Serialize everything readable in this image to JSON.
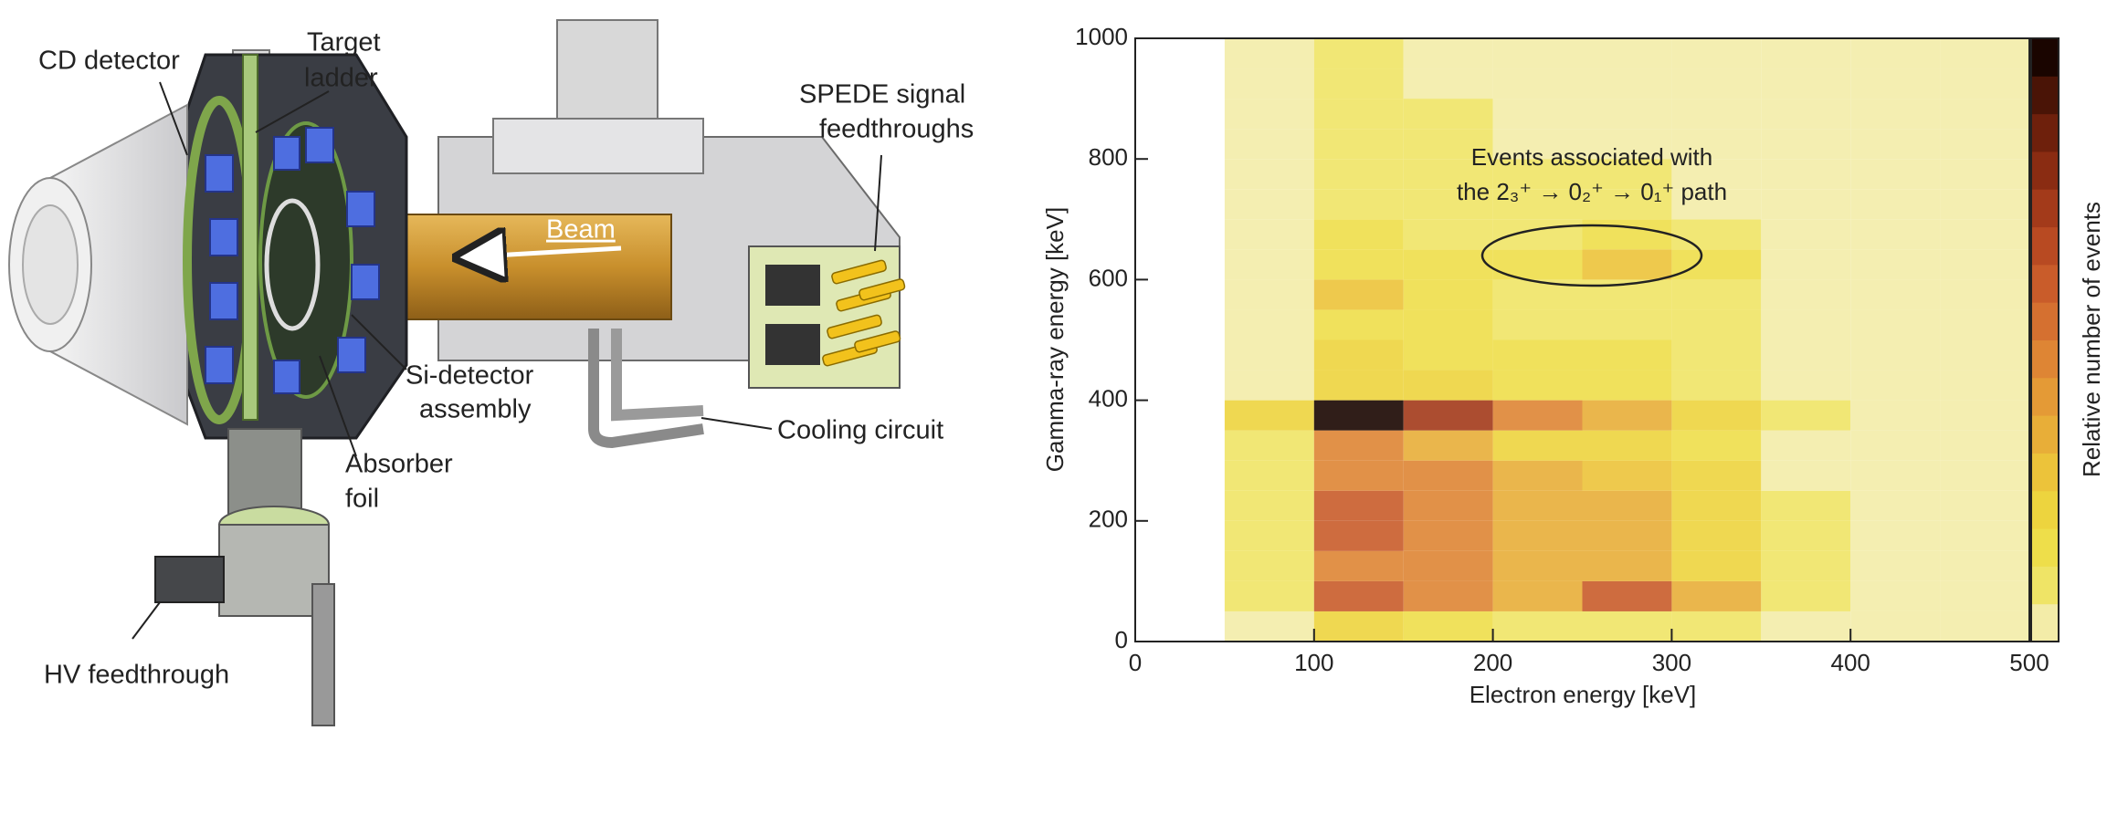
{
  "diagram": {
    "labels": [
      {
        "lines": [
          "CD detector"
        ]
      },
      {
        "lines": [
          "Target",
          "ladder"
        ]
      },
      {
        "lines": [
          "SPEDE signal",
          "feedthroughs"
        ]
      },
      {
        "lines": [
          "Si-detector",
          "assembly"
        ]
      },
      {
        "lines": [
          "Cooling circuit"
        ]
      },
      {
        "lines": [
          "Absorber",
          "foil"
        ]
      },
      {
        "lines": [
          "HV feedthrough"
        ]
      }
    ],
    "beam_label": "Beam"
  },
  "chart_data": {
    "type": "heatmap",
    "x_label": "Electron energy [keV]",
    "y_label": "Gamma-ray energy [keV]",
    "colorbar_label": "Relative number of events",
    "annotation": [
      "Events associated with",
      "the 2₃⁺ → 0₂⁺ → 0₁⁺ path"
    ],
    "xlim": [
      0,
      500
    ],
    "xticks": [
      0,
      100,
      200,
      300,
      400,
      500
    ],
    "ylim": [
      0,
      1000
    ],
    "yticks": [
      0,
      200,
      400,
      600,
      800,
      1000
    ],
    "x_bins": [
      0,
      50,
      100,
      150,
      200,
      250,
      300,
      350,
      400,
      450,
      500
    ],
    "y_bins": [
      0,
      50,
      100,
      150,
      200,
      250,
      300,
      350,
      400,
      450,
      500,
      550,
      600,
      650,
      700,
      750,
      800,
      850,
      900,
      950,
      1000
    ],
    "colors": [
      "#f3eca8",
      "#efe466",
      "#eede4a",
      "#edd43e",
      "#ecc33a",
      "#e8ae38",
      "#e49a36",
      "#de8534",
      "#d57030",
      "#c95c2a",
      "#b84a22",
      "#a33a1a",
      "#8a2c12",
      "#6e200c",
      "#4a1406",
      "#1a0500"
    ],
    "values": [
      [
        0,
        0.5,
        2,
        1.5,
        1,
        1,
        0.8,
        0.3,
        0.2,
        0.1
      ],
      [
        0,
        1,
        5,
        4,
        3,
        5,
        3,
        0.8,
        0.4,
        0.2
      ],
      [
        0,
        1,
        4,
        4,
        3,
        3,
        2,
        0.6,
        0.3,
        0.2
      ],
      [
        0,
        1,
        5,
        4,
        3,
        3,
        2,
        0.6,
        0.3,
        0.2
      ],
      [
        0,
        1,
        5,
        4,
        3,
        3,
        2,
        0.6,
        0.3,
        0.2
      ],
      [
        0,
        1,
        4,
        4,
        3,
        2.5,
        2,
        0.5,
        0.3,
        0.2
      ],
      [
        0,
        1,
        4,
        3,
        2,
        2,
        1.5,
        0.5,
        0.3,
        0.2
      ],
      [
        0,
        2,
        8,
        6,
        4,
        3,
        2,
        0.8,
        0.4,
        0.2
      ],
      [
        0,
        0.5,
        2,
        2,
        1.5,
        1.5,
        1,
        0.4,
        0.2,
        0.1
      ],
      [
        0,
        0.5,
        2,
        1.5,
        1.2,
        1.2,
        0.8,
        0.3,
        0.2,
        0.1
      ],
      [
        0,
        0.4,
        1.5,
        1.2,
        1,
        1,
        0.7,
        0.3,
        0.2,
        0.1
      ],
      [
        0,
        0.5,
        2.5,
        1.5,
        1,
        1,
        0.8,
        0.3,
        0.2,
        0.1
      ],
      [
        0,
        0.4,
        1.5,
        1.2,
        1.2,
        2.5,
        1.5,
        0.3,
        0.2,
        0.1
      ],
      [
        0,
        0.3,
        1.2,
        1,
        1,
        1.5,
        1,
        0.3,
        0.2,
        0.1
      ],
      [
        0,
        0.3,
        1,
        0.8,
        0.7,
        0.7,
        0.5,
        0.2,
        0.1,
        0.1
      ],
      [
        0,
        0.3,
        1,
        0.8,
        0.6,
        0.6,
        0.5,
        0.2,
        0.1,
        0.1
      ],
      [
        0,
        0.2,
        0.8,
        0.7,
        0.5,
        0.5,
        0.4,
        0.2,
        0.1,
        0.1
      ],
      [
        0,
        0.2,
        0.7,
        0.6,
        0.5,
        0.5,
        0.4,
        0.2,
        0.1,
        0.1
      ],
      [
        0,
        0.2,
        0.6,
        0.5,
        0.4,
        0.4,
        0.3,
        0.1,
        0.1,
        0.1
      ],
      [
        0,
        0.2,
        0.6,
        0.5,
        0.4,
        0.4,
        0.3,
        0.1,
        0.1,
        0.1
      ]
    ]
  }
}
